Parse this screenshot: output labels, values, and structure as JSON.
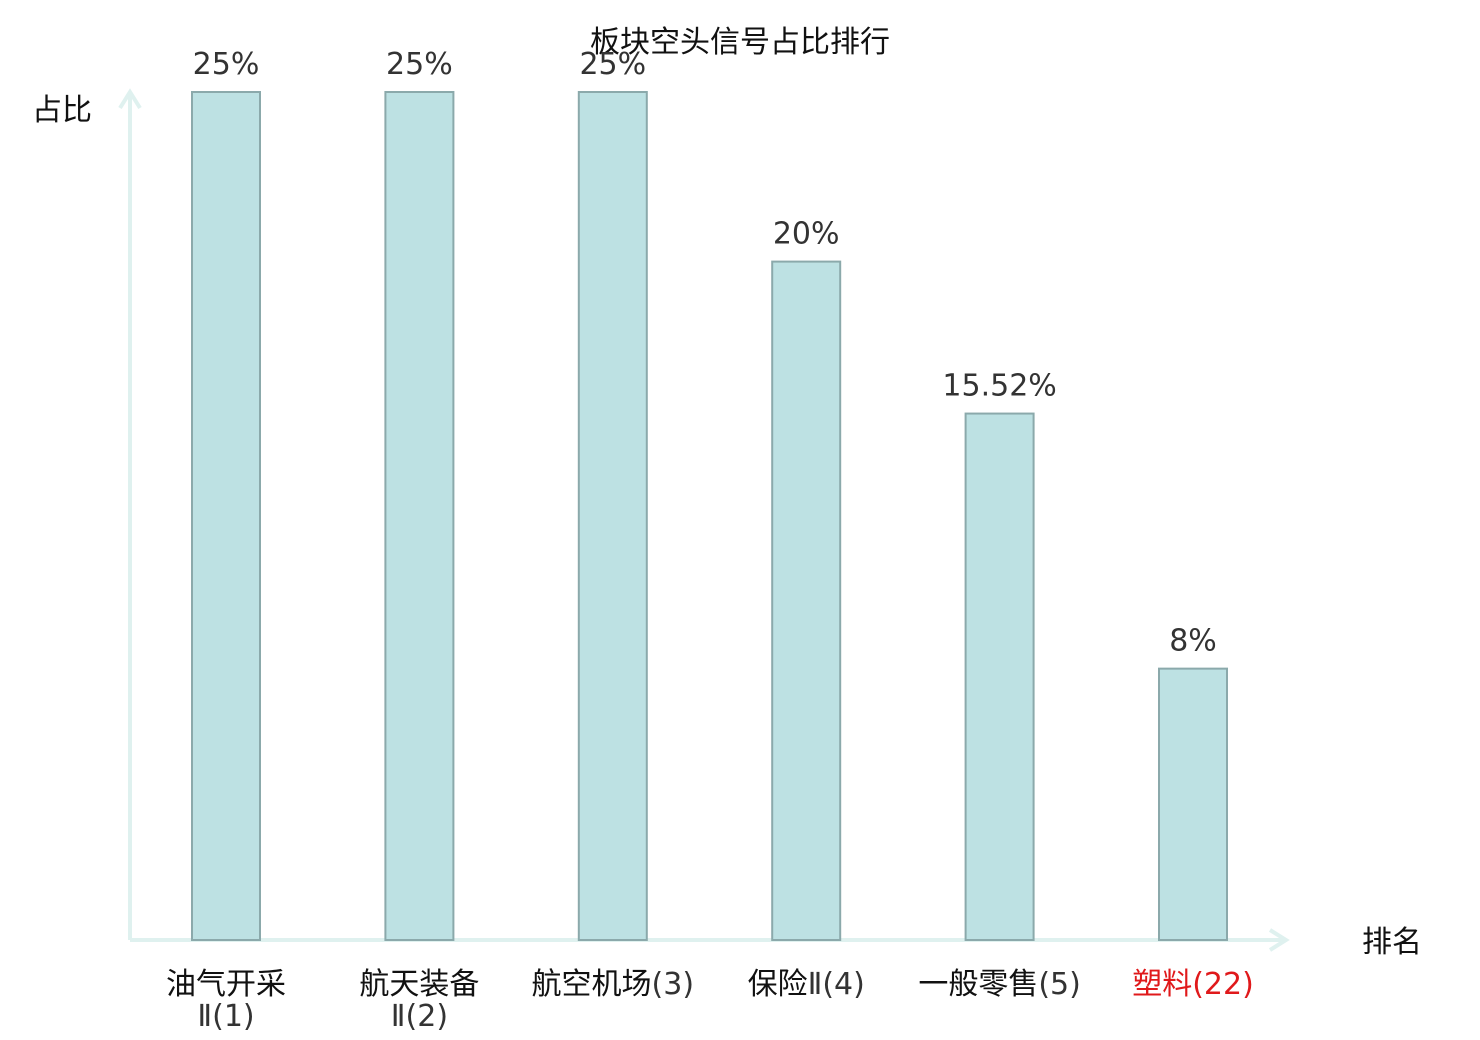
{
  "chart_data": {
    "type": "bar",
    "title": "板块空头信号占比排行",
    "xlabel": "排名",
    "ylabel": "占比",
    "ylim": [
      0,
      25
    ],
    "grid": false,
    "categories": [
      {
        "name": "油气开采",
        "rank": "Ⅱ(1)",
        "name_line2": true
      },
      {
        "name": "航天装备",
        "rank": "Ⅱ(2)",
        "name_line2": true
      },
      {
        "name": "航空机场",
        "rank": "(3)",
        "name_line2": false
      },
      {
        "name": "保险",
        "rank": "Ⅱ(4)",
        "name_line2": false
      },
      {
        "name": "一般零售",
        "rank": "(5)",
        "name_line2": false
      },
      {
        "name": "塑料",
        "rank": "(22)",
        "name_line2": false,
        "highlight": true
      }
    ],
    "values": [
      25,
      25,
      25,
      20,
      15.52,
      8
    ],
    "value_labels": [
      "25%",
      "25%",
      "25%",
      "20%",
      "15.52%",
      "8%"
    ],
    "colors": {
      "bar_fill": "#bde1e3",
      "bar_stroke": "#8ba9ab",
      "axis": "#dff1ef",
      "highlight_text": "#e0191b"
    }
  }
}
